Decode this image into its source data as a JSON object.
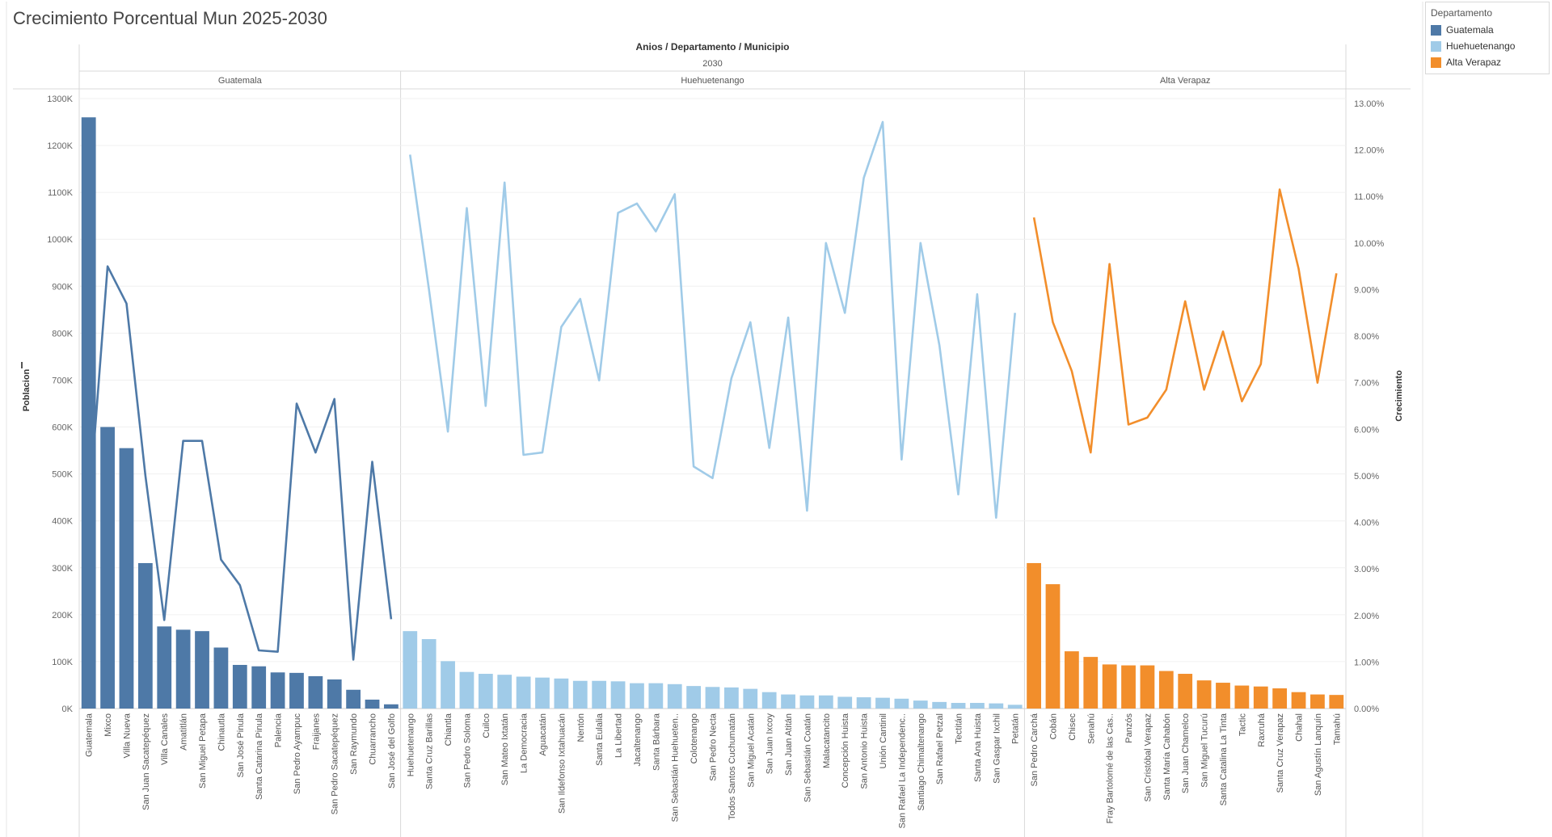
{
  "title": "Crecimiento Porcentual Mun 2025-2030",
  "legend": {
    "title": "Departamento",
    "items": [
      {
        "label": "Guatemala",
        "color": "#4e79a7"
      },
      {
        "label": "Huehuetenango",
        "color": "#a0cbe8"
      },
      {
        "label": "Alta Verapaz",
        "color": "#f28e2b"
      }
    ]
  },
  "chart_data": {
    "type": "bar",
    "header": "Anios / Departamento / Municipio",
    "subheader": "2030",
    "ylabel_left": "Poblacion",
    "ylabel_right": "Crecimiento",
    "ylim_left": [
      0,
      1300000
    ],
    "ylim_right": [
      0,
      13
    ],
    "yticks_left": [
      "1300K",
      "1200K",
      "1100K",
      "1000K",
      "900K",
      "800K",
      "700K",
      "600K",
      "500K",
      "400K",
      "300K",
      "200K",
      "100K",
      "0K"
    ],
    "yticks_right": [
      "13.00%",
      "12.00%",
      "11.00%",
      "10.00%",
      "9.00%",
      "8.00%",
      "7.00%",
      "6.00%",
      "5.00%",
      "4.00%",
      "3.00%",
      "2.00%",
      "1.00%",
      "0.00%"
    ],
    "grid": true,
    "panels": [
      {
        "name": "Guatemala",
        "bar_color": "#4e79a7",
        "line_color": "#4e79a7",
        "categories": [
          "Guatemala",
          "Mixco",
          "Villa Nueva",
          "San Juan Sacatepéquez",
          "Villa Canales",
          "Amatitlán",
          "San Miguel Petapa",
          "Chinautla",
          "San José Pinula",
          "Santa Catarina Pinula",
          "Palencia",
          "San Pedro Ayampuc",
          "Fraijanes",
          "San Pedro Sacatepéquez",
          "San Raymundo",
          "Chuarrancho",
          "San José del Golfo"
        ],
        "poblacion": [
          1260000,
          600000,
          555000,
          310000,
          175000,
          168000,
          165000,
          130000,
          93000,
          90000,
          77000,
          76000,
          69000,
          62000,
          40000,
          19000,
          9000
        ],
        "crecimiento": [
          4.2,
          9.5,
          8.7,
          5.0,
          1.9,
          5.75,
          5.75,
          3.2,
          2.65,
          1.25,
          1.22,
          6.55,
          5.5,
          6.65,
          1.05,
          5.3,
          1.92
        ]
      },
      {
        "name": "Huehuetenango",
        "bar_color": "#a0cbe8",
        "line_color": "#a0cbe8",
        "categories": [
          "Huehuetenango",
          "Santa Cruz Barillas",
          "Chiantla",
          "San Pedro Soloma",
          "Cuilco",
          "San Mateo Ixtatán",
          "La Democracia",
          "Aguacatán",
          "San Ildefonso Ixtahuacán",
          "Nentón",
          "Santa Eulalia",
          "La Libertad",
          "Jacaltenango",
          "Santa Bárbara",
          "San Sebastián Huehueten..",
          "Colotenango",
          "San Pedro Necta",
          "Todos Santos Cuchumatán",
          "San Miguel Acatán",
          "San Juan Ixcoy",
          "San Juan Atitán",
          "San Sebastián Coatán",
          "Malacatancito",
          "Concepción Huista",
          "San Antonio Huista",
          "Unión Cantinil",
          "San Rafael La Independenc..",
          "Santiago Chimaltenango",
          "San Rafael Petzal",
          "Tectitán",
          "Santa Ana Huista",
          "San Gaspar Ixchil",
          "Petatán"
        ],
        "poblacion": [
          165000,
          148000,
          101000,
          78000,
          74000,
          72000,
          68000,
          66000,
          64000,
          59000,
          59000,
          58000,
          54000,
          54000,
          52000,
          48000,
          46000,
          45000,
          42000,
          35000,
          30000,
          28000,
          28000,
          25000,
          24000,
          23000,
          21000,
          17000,
          14000,
          12000,
          12000,
          11000,
          8000
        ],
        "crecimiento": [
          11.9,
          9.0,
          5.95,
          10.75,
          6.5,
          11.3,
          5.45,
          5.5,
          8.2,
          8.8,
          7.05,
          10.65,
          10.85,
          10.25,
          11.05,
          5.2,
          4.95,
          7.1,
          8.3,
          5.6,
          8.4,
          4.25,
          10.0,
          8.5,
          11.4,
          12.6,
          5.35,
          10.0,
          7.8,
          4.6,
          8.9,
          4.1,
          8.5
        ]
      },
      {
        "name": "Alta Verapaz",
        "bar_color": "#f28e2b",
        "line_color": "#f28e2b",
        "categories": [
          "San Pedro Carchá",
          "Cobán",
          "Chisec",
          "Senahú",
          "Fray Bartolomé de las Cas..",
          "Panzós",
          "San Cristóbal Verapaz",
          "Santa María Cahabón",
          "San Juan Chamelco",
          "San Miguel Tucurú",
          "Santa Catalina La Tinta",
          "Tactic",
          "Raxruhá",
          "Santa Cruz Verapaz",
          "Chahal",
          "San Agustín Lanquín",
          "Tamahú"
        ],
        "poblacion": [
          310000,
          265000,
          122000,
          110000,
          94000,
          92000,
          92000,
          80000,
          74000,
          60000,
          55000,
          49000,
          47000,
          43000,
          35000,
          30000,
          29000
        ],
        "crecimiento": [
          10.55,
          8.3,
          7.25,
          5.5,
          9.55,
          6.1,
          6.25,
          6.85,
          8.75,
          6.85,
          8.1,
          6.6,
          7.4,
          11.15,
          9.45,
          7.0,
          9.35
        ]
      }
    ]
  }
}
